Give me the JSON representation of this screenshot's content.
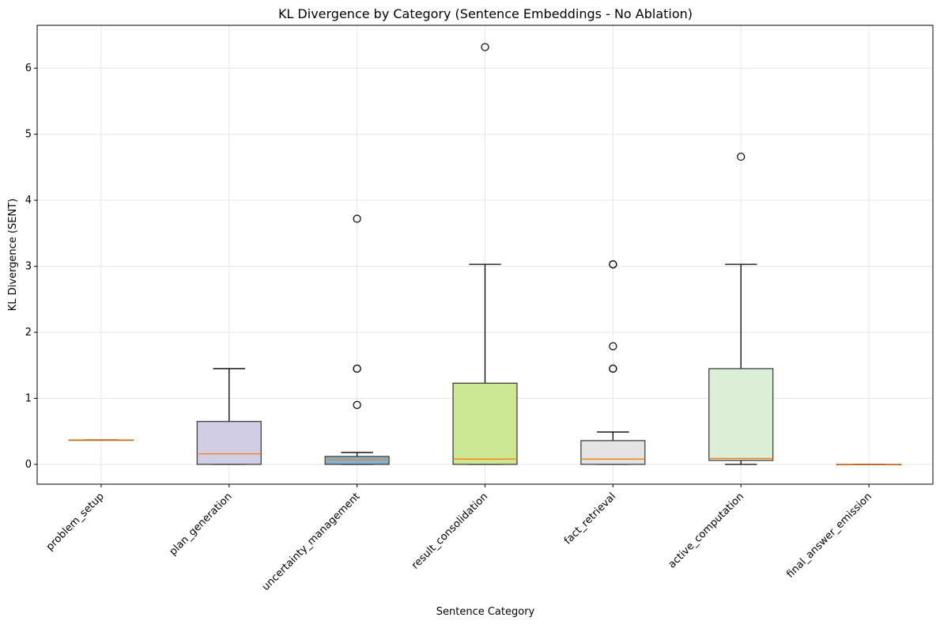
{
  "chart_data": {
    "type": "box",
    "title": "KL Divergence by Category (Sentence Embeddings - No Ablation)",
    "xlabel": "Sentence Category",
    "ylabel": "KL Divergence (SENT)",
    "ylim": [
      -0.3,
      6.65
    ],
    "yticks": [
      0,
      1,
      2,
      3,
      4,
      5,
      6
    ],
    "grid": true,
    "median_color": "#ff7f0e",
    "categories": [
      "problem_setup",
      "plan_generation",
      "uncertainty_management",
      "result_consolidation",
      "fact_retrieval",
      "active_computation",
      "final_answer_emission"
    ],
    "boxes": [
      {
        "category": "problem_setup",
        "whisker_low": 0.37,
        "q1": 0.37,
        "median": 0.37,
        "q3": 0.37,
        "whisker_high": 0.37,
        "outliers": [],
        "color": "#8dd3c7"
      },
      {
        "category": "plan_generation",
        "whisker_low": 0.0,
        "q1": 0.0,
        "median": 0.16,
        "q3": 0.65,
        "whisker_high": 1.45,
        "outliers": [],
        "color": "#d1cde4"
      },
      {
        "category": "uncertainty_management",
        "whisker_low": 0.0,
        "q1": 0.0,
        "median": 0.07,
        "q3": 0.12,
        "whisker_high": 0.18,
        "outliers": [
          0.9,
          1.45,
          1.45,
          3.72
        ],
        "color": "#7fb1d3"
      },
      {
        "category": "result_consolidation",
        "whisker_low": 0.0,
        "q1": 0.0,
        "median": 0.08,
        "q3": 1.23,
        "whisker_high": 3.03,
        "outliers": [
          6.32
        ],
        "color": "#cce894"
      },
      {
        "category": "fact_retrieval",
        "whisker_low": 0.0,
        "q1": 0.0,
        "median": 0.08,
        "q3": 0.36,
        "whisker_high": 0.49,
        "outliers": [
          1.45,
          1.45,
          1.79,
          3.03,
          3.03
        ],
        "color": "#e3e3e3"
      },
      {
        "category": "active_computation",
        "whisker_low": 0.0,
        "q1": 0.06,
        "median": 0.09,
        "q3": 1.45,
        "whisker_high": 3.03,
        "outliers": [
          4.66
        ],
        "color": "#daefd5"
      },
      {
        "category": "final_answer_emission",
        "whisker_low": 0.0,
        "q1": 0.0,
        "median": 0.0,
        "q3": 0.0,
        "whisker_high": 0.0,
        "outliers": [],
        "color": "#ffffb3"
      }
    ]
  }
}
